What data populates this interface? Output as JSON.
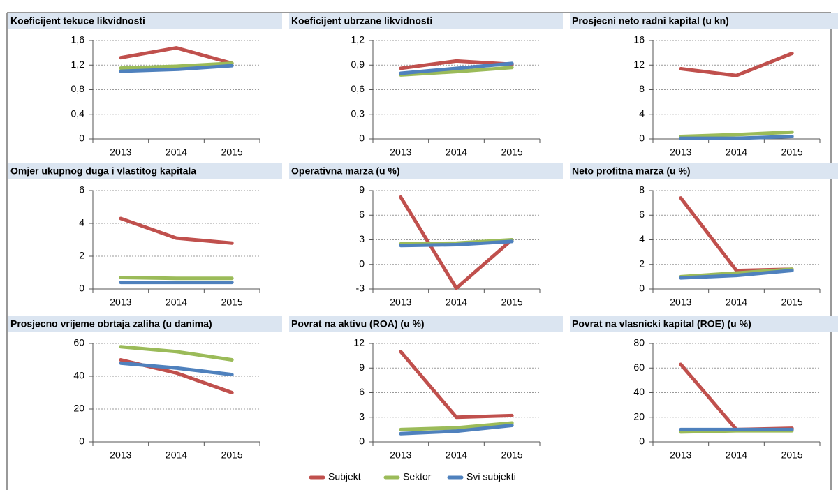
{
  "chart_data": [
    {
      "type": "line",
      "title": "Koeficijent tekuce likvidnosti",
      "categories": [
        "2013",
        "2014",
        "2015"
      ],
      "ylim": [
        0,
        1.6
      ],
      "yticks": [
        0,
        {
          "value": 0.4,
          "label": "0,4"
        },
        {
          "value": 0.8,
          "label": "0,8"
        },
        {
          "value": 1.2,
          "label": "1,2"
        },
        {
          "value": 1.6,
          "label": "1,6"
        }
      ],
      "grid": true,
      "series": [
        {
          "name": "Subjekt",
          "color": "#c0504d",
          "values": [
            1.32,
            1.48,
            1.23
          ]
        },
        {
          "name": "Sektor",
          "color": "#9bbb59",
          "values": [
            1.15,
            1.18,
            1.23
          ]
        },
        {
          "name": "Svi subjekti",
          "color": "#4f81bd",
          "values": [
            1.1,
            1.13,
            1.19
          ]
        }
      ]
    },
    {
      "type": "line",
      "title": "Koeficijent ubrzane likvidnosti",
      "categories": [
        "2013",
        "2014",
        "2015"
      ],
      "ylim": [
        0,
        1.2
      ],
      "yticks": [
        0,
        {
          "value": 0.3,
          "label": "0,3"
        },
        {
          "value": 0.6,
          "label": "0,6"
        },
        {
          "value": 0.9,
          "label": "0,9"
        },
        {
          "value": 1.2,
          "label": "1,2"
        }
      ],
      "grid": true,
      "series": [
        {
          "name": "Subjekt",
          "color": "#c0504d",
          "values": [
            0.86,
            0.95,
            0.91
          ]
        },
        {
          "name": "Sektor",
          "color": "#9bbb59",
          "values": [
            0.78,
            0.82,
            0.87
          ]
        },
        {
          "name": "Svi subjekti",
          "color": "#4f81bd",
          "values": [
            0.8,
            0.86,
            0.92
          ]
        }
      ]
    },
    {
      "type": "line",
      "title": "Prosjecni neto radni kapital (u kn)",
      "categories": [
        "2013",
        "2014",
        "2015"
      ],
      "ylim": [
        0,
        16
      ],
      "yticks": [
        0,
        4,
        8,
        12,
        16
      ],
      "grid": true,
      "series": [
        {
          "name": "Subjekt",
          "color": "#c0504d",
          "values": [
            11.4,
            10.3,
            13.9
          ]
        },
        {
          "name": "Sektor",
          "color": "#9bbb59",
          "values": [
            0.4,
            0.7,
            1.1
          ]
        },
        {
          "name": "Svi subjekti",
          "color": "#4f81bd",
          "values": [
            0.1,
            0.1,
            0.4
          ]
        }
      ]
    },
    {
      "type": "line",
      "title": "Omjer ukupnog duga i vlastitog kapitala",
      "categories": [
        "2013",
        "2014",
        "2015"
      ],
      "ylim": [
        0,
        6
      ],
      "yticks": [
        0,
        2,
        4,
        6
      ],
      "grid": true,
      "series": [
        {
          "name": "Subjekt",
          "color": "#c0504d",
          "values": [
            4.3,
            3.1,
            2.8
          ]
        },
        {
          "name": "Sektor",
          "color": "#9bbb59",
          "values": [
            0.7,
            0.65,
            0.65
          ]
        },
        {
          "name": "Svi subjekti",
          "color": "#4f81bd",
          "values": [
            0.4,
            0.4,
            0.4
          ]
        }
      ]
    },
    {
      "type": "line",
      "title": "Operativna marza (u %)",
      "categories": [
        "2013",
        "2014",
        "2015"
      ],
      "ylim": [
        -3,
        9
      ],
      "yticks": [
        -3,
        0,
        3,
        6,
        9
      ],
      "grid": true,
      "series": [
        {
          "name": "Subjekt",
          "color": "#c0504d",
          "values": [
            8.2,
            -2.9,
            3.0
          ]
        },
        {
          "name": "Sektor",
          "color": "#9bbb59",
          "values": [
            2.5,
            2.6,
            3.0
          ]
        },
        {
          "name": "Svi subjekti",
          "color": "#4f81bd",
          "values": [
            2.3,
            2.4,
            2.8
          ]
        }
      ]
    },
    {
      "type": "line",
      "title": "Neto profitna marza (u %)",
      "categories": [
        "2013",
        "2014",
        "2015"
      ],
      "ylim": [
        0,
        8
      ],
      "yticks": [
        0,
        2,
        4,
        6,
        8
      ],
      "grid": true,
      "series": [
        {
          "name": "Subjekt",
          "color": "#c0504d",
          "values": [
            7.4,
            1.5,
            1.6
          ]
        },
        {
          "name": "Sektor",
          "color": "#9bbb59",
          "values": [
            1.0,
            1.3,
            1.6
          ]
        },
        {
          "name": "Svi subjekti",
          "color": "#4f81bd",
          "values": [
            0.9,
            1.1,
            1.5
          ]
        }
      ]
    },
    {
      "type": "line",
      "title": "Prosjecno vrijeme obrtaja zaliha (u danima)",
      "categories": [
        "2013",
        "2014",
        "2015"
      ],
      "ylim": [
        0,
        60
      ],
      "yticks": [
        0,
        20,
        40,
        60
      ],
      "grid": true,
      "series": [
        {
          "name": "Subjekt",
          "color": "#c0504d",
          "values": [
            50,
            42,
            30
          ]
        },
        {
          "name": "Sektor",
          "color": "#9bbb59",
          "values": [
            58,
            55,
            50
          ]
        },
        {
          "name": "Svi subjekti",
          "color": "#4f81bd",
          "values": [
            48,
            45,
            41
          ]
        }
      ]
    },
    {
      "type": "line",
      "title": "Povrat na aktivu (ROA) (u %)",
      "categories": [
        "2013",
        "2014",
        "2015"
      ],
      "ylim": [
        0,
        12
      ],
      "yticks": [
        0,
        3,
        6,
        9,
        12
      ],
      "grid": true,
      "series": [
        {
          "name": "Subjekt",
          "color": "#c0504d",
          "values": [
            11,
            3.0,
            3.2
          ]
        },
        {
          "name": "Sektor",
          "color": "#9bbb59",
          "values": [
            1.5,
            1.7,
            2.3
          ]
        },
        {
          "name": "Svi subjekti",
          "color": "#4f81bd",
          "values": [
            1.0,
            1.3,
            2.0
          ]
        }
      ]
    },
    {
      "type": "line",
      "title": "Povrat na vlasnicki kapital (ROE) (u %)",
      "categories": [
        "2013",
        "2014",
        "2015"
      ],
      "ylim": [
        0,
        80
      ],
      "yticks": [
        0,
        20,
        40,
        60,
        80
      ],
      "grid": true,
      "series": [
        {
          "name": "Subjekt",
          "color": "#c0504d",
          "values": [
            63,
            10,
            11
          ]
        },
        {
          "name": "Sektor",
          "color": "#9bbb59",
          "values": [
            8,
            9,
            9
          ]
        },
        {
          "name": "Svi subjekti",
          "color": "#4f81bd",
          "values": [
            10,
            10,
            10
          ]
        }
      ]
    }
  ]
}
